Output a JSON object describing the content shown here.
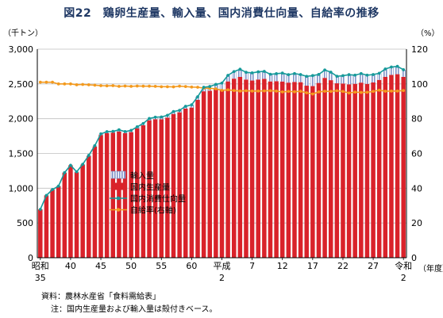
{
  "figure": {
    "title": "図22　鶏卵生産量、輸入量、国内消費仕向量、自給率の推移",
    "source": "資料：農林水産省「食料需給表」",
    "note": "注：国内生産量および輸入量は殻付きベース。"
  },
  "chart_data": {
    "type": "bar",
    "title": "図22　鶏卵生産量、輸入量、国内消費仕向量、自給率の推移",
    "left_axis": {
      "unit_label": "（千トン）",
      "range": [
        0,
        3000
      ],
      "ticks": [
        "0",
        "500",
        "1,000",
        "1,500",
        "2,000",
        "2,500",
        "3,000"
      ],
      "tick_values": [
        0,
        500,
        1000,
        1500,
        2000,
        2500,
        3000
      ]
    },
    "right_axis": {
      "unit_label": "（%）",
      "range": [
        0,
        120
      ],
      "ticks": [
        "0",
        "20",
        "40",
        "60",
        "80",
        "100",
        "120"
      ],
      "tick_values": [
        0,
        20,
        40,
        60,
        80,
        100,
        120
      ]
    },
    "x_axis": {
      "unit_label": "（年度）",
      "labels": [
        {
          "index": 0,
          "text": "昭和",
          "sub": "35"
        },
        {
          "index": 5,
          "text": "40",
          "sub": ""
        },
        {
          "index": 10,
          "text": "45",
          "sub": ""
        },
        {
          "index": 15,
          "text": "50",
          "sub": ""
        },
        {
          "index": 20,
          "text": "55",
          "sub": ""
        },
        {
          "index": 25,
          "text": "60",
          "sub": ""
        },
        {
          "index": 30,
          "text": "平成",
          "sub": "2"
        },
        {
          "index": 35,
          "text": "7",
          "sub": ""
        },
        {
          "index": 40,
          "text": "12",
          "sub": ""
        },
        {
          "index": 45,
          "text": "17",
          "sub": ""
        },
        {
          "index": 50,
          "text": "22",
          "sub": ""
        },
        {
          "index": 55,
          "text": "27",
          "sub": ""
        },
        {
          "index": 60,
          "text": "令和",
          "sub": "2"
        }
      ]
    },
    "legend": {
      "position": "center-left",
      "entries": [
        "輸入量",
        "国内生産量",
        "国内消費仕向量",
        "自給率(右軸)"
      ]
    },
    "colors": {
      "production": "#d9222a",
      "imports": "#7f92c8",
      "consumption": "#169a9a",
      "self_sufficiency": "#f39a1e"
    },
    "series": [
      {
        "name": "国内生産量",
        "kind": "bar",
        "axis": "left",
        "values": [
          696,
          897,
          981,
          1030,
          1224,
          1330,
          1230,
          1340,
          1464,
          1600,
          1766,
          1793,
          1800,
          1815,
          1793,
          1807,
          1861,
          1906,
          1977,
          1993,
          1992,
          2016,
          2068,
          2092,
          2145,
          2160,
          2272,
          2394,
          2402,
          2423,
          2420,
          2536,
          2576,
          2601,
          2563,
          2549,
          2564,
          2573,
          2536,
          2539,
          2535,
          2519,
          2529,
          2525,
          2475,
          2469,
          2514,
          2587,
          2554,
          2509,
          2506,
          2495,
          2502,
          2519,
          2501,
          2521,
          2558,
          2601,
          2630,
          2640,
          2602
        ]
      },
      {
        "name": "輸入量",
        "kind": "stacked_bar",
        "axis": "left",
        "values": [
          0,
          0,
          0,
          0,
          0,
          0,
          6,
          4,
          8,
          12,
          16,
          20,
          18,
          25,
          22,
          25,
          22,
          25,
          26,
          29,
          33,
          33,
          35,
          28,
          33,
          40,
          44,
          58,
          61,
          70,
          92,
          88,
          102,
          110,
          104,
          110,
          110,
          108,
          103,
          108,
          121,
          114,
          120,
          110,
          134,
          151,
          122,
          113,
          115,
          101,
          113,
          138,
          124,
          130,
          125,
          114,
          95,
          114,
          113,
          113,
          102
        ]
      },
      {
        "name": "国内消費仕向量",
        "kind": "line",
        "axis": "left",
        "values": [
          696,
          897,
          981,
          1030,
          1224,
          1330,
          1236,
          1344,
          1472,
          1612,
          1782,
          1813,
          1818,
          1840,
          1815,
          1832,
          1883,
          1931,
          2003,
          2022,
          2025,
          2049,
          2103,
          2120,
          2178,
          2200,
          2316,
          2452,
          2463,
          2493,
          2512,
          2624,
          2678,
          2711,
          2667,
          2659,
          2674,
          2681,
          2639,
          2647,
          2656,
          2633,
          2649,
          2635,
          2609,
          2620,
          2636,
          2700,
          2669,
          2610,
          2619,
          2633,
          2626,
          2649,
          2626,
          2635,
          2653,
          2715,
          2743,
          2753,
          2704
        ]
      },
      {
        "name": "自給率(右軸)",
        "kind": "line",
        "axis": "right",
        "values": [
          101,
          101,
          101,
          100,
          100,
          100,
          99.5,
          99.7,
          99.5,
          99.3,
          99,
          98.9,
          99,
          98.6,
          98.8,
          98.6,
          98.8,
          98.7,
          98.7,
          98.6,
          98.4,
          98.4,
          98.3,
          98.7,
          98.5,
          98.2,
          98.1,
          97.6,
          97.5,
          97.2,
          96.3,
          96.6,
          96.2,
          95.9,
          96.1,
          95.9,
          95.9,
          96,
          96.1,
          95.9,
          95.4,
          95.7,
          95.5,
          95.8,
          94.9,
          94.2,
          95.4,
          95.8,
          95.7,
          96.1,
          95.7,
          94.8,
          95.3,
          95.1,
          95.2,
          95.7,
          96.4,
          95.8,
          95.9,
          95.9,
          96.2
        ]
      }
    ]
  }
}
